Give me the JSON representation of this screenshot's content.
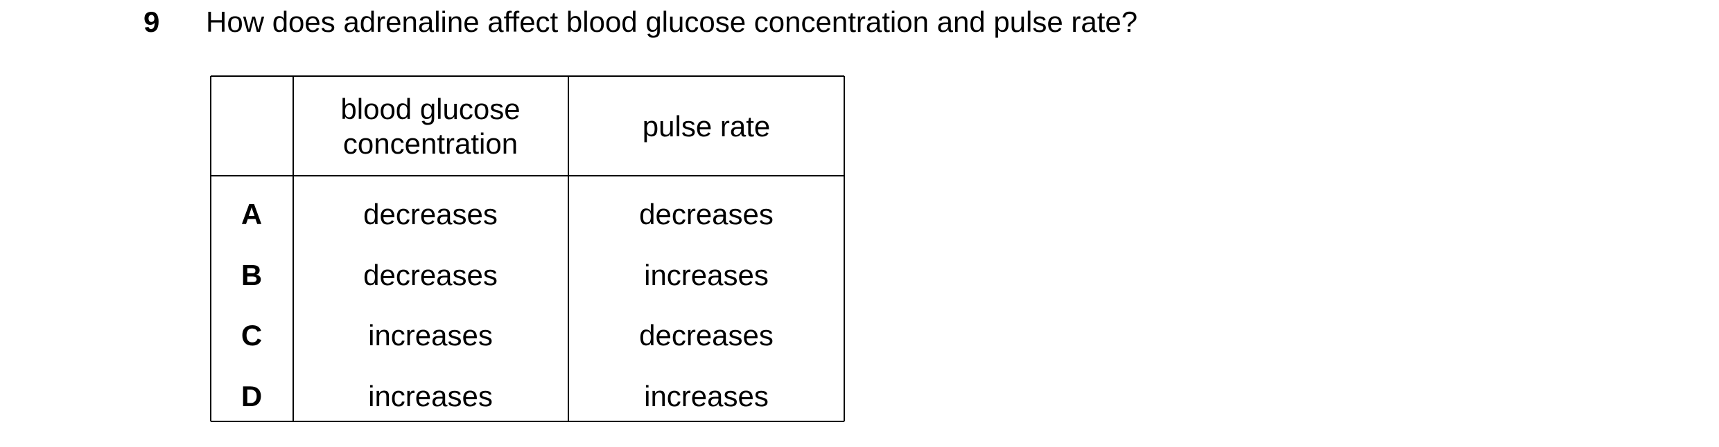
{
  "question": {
    "number": "9",
    "text": "How does adrenaline affect blood glucose concentration and pulse rate?"
  },
  "table": {
    "header": [
      "blood glucose concentration",
      "pulse rate"
    ],
    "rows": [
      [
        "A",
        "decreases",
        "decreases"
      ],
      [
        "B",
        "decreases",
        "increases"
      ],
      [
        "C",
        "increases",
        "decreases"
      ],
      [
        "D",
        "increases",
        "increases"
      ]
    ]
  }
}
